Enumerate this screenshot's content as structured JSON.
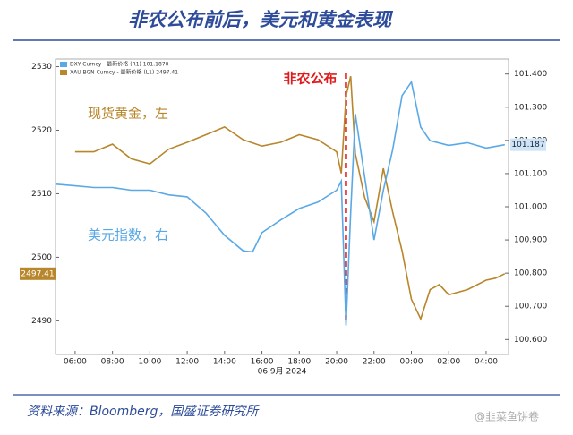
{
  "chart_data": {
    "type": "line",
    "title": "非农公布前后，美元和黄金表现",
    "source": "资料来源：Bloomberg，国盛证券研究所",
    "watermark": "@韭菜鱼饼卷",
    "x_label": "06 9月 2024",
    "event_label": "非农公布",
    "event_x": 20.5,
    "annotations": [
      {
        "text": "现货黄金，左",
        "series": 0
      },
      {
        "text": "美元指数，右",
        "series": 1
      }
    ],
    "xlim": [
      4.95,
      29.2
    ],
    "xticks": [
      {
        "value": 6,
        "label": "06:00"
      },
      {
        "value": 8,
        "label": "08:00"
      },
      {
        "value": 10,
        "label": "10:00"
      },
      {
        "value": 12,
        "label": "12:00"
      },
      {
        "value": 14,
        "label": "14:00"
      },
      {
        "value": 16,
        "label": "16:00"
      },
      {
        "value": 18,
        "label": "18:00"
      },
      {
        "value": 20,
        "label": "20:00"
      },
      {
        "value": 22,
        "label": "22:00"
      },
      {
        "value": 24,
        "label": "00:00"
      },
      {
        "value": 26,
        "label": "02:00"
      },
      {
        "value": 28,
        "label": "04:00"
      }
    ],
    "ylim": [
      2484.7,
      2531.2
    ],
    "yticks": [
      2490,
      2500,
      2510,
      2520,
      2530
    ],
    "y2lim": [
      100.555,
      101.445
    ],
    "y2ticks": [
      {
        "value": 100.6,
        "label": "100.600"
      },
      {
        "value": 100.7,
        "label": "100.700"
      },
      {
        "value": 100.8,
        "label": "100.800"
      },
      {
        "value": 100.9,
        "label": "100.900"
      },
      {
        "value": 101.0,
        "label": "101.000"
      },
      {
        "value": 101.1,
        "label": "101.100"
      },
      {
        "value": 101.2,
        "label": "101.200"
      },
      {
        "value": 101.3,
        "label": "101.300"
      },
      {
        "value": 101.4,
        "label": "101.400"
      }
    ],
    "series": [
      {
        "name": "XAU BGN Curncy - 最新价格 (L1) 2497.41",
        "color": "#b8862b",
        "axis": "y",
        "badge": "2497.41",
        "x": [
          6,
          7,
          8,
          9,
          10,
          11,
          12,
          13,
          14,
          15,
          16,
          17,
          18,
          19,
          20,
          20.25,
          20.5,
          20.75,
          21,
          21.5,
          22,
          22.5,
          23,
          23.5,
          24,
          24.5,
          25,
          25.5,
          26,
          27,
          28,
          28.5,
          29
        ],
        "values": [
          2516.6,
          2516.6,
          2517.8,
          2515.5,
          2514.7,
          2517.0,
          2518.1,
          2519.3,
          2520.5,
          2518.5,
          2517.5,
          2518.1,
          2519.3,
          2518.5,
          2516.6,
          2513.2,
          2525.4,
          2528.5,
          2516.3,
          2509.4,
          2505.6,
          2514.0,
          2507.1,
          2501.0,
          2493.4,
          2490.3,
          2494.9,
          2495.7,
          2494.1,
          2494.9,
          2496.4,
          2496.7,
          2497.41
        ]
      },
      {
        "name": "DXY Curncy - 最新价格 (R1) 101.1870",
        "color": "#5aa9e6",
        "axis": "y2",
        "badge": "101.187",
        "x": [
          5,
          6,
          7,
          8,
          9,
          10,
          11,
          12,
          13,
          14,
          15,
          15.5,
          16,
          17,
          18,
          19,
          20,
          20.25,
          20.5,
          20.75,
          21,
          21.5,
          22,
          22.5,
          23,
          23.5,
          24,
          24.5,
          25,
          26,
          27,
          28,
          29
        ],
        "values": [
          101.068,
          101.063,
          101.058,
          101.058,
          101.05,
          101.05,
          101.036,
          101.03,
          100.981,
          100.914,
          100.867,
          100.864,
          100.922,
          100.96,
          100.995,
          101.014,
          101.05,
          101.077,
          100.642,
          100.982,
          101.28,
          101.09,
          100.9,
          101.05,
          101.172,
          101.335,
          101.376,
          101.24,
          101.199,
          101.185,
          101.193,
          101.177,
          101.187
        ]
      }
    ]
  }
}
